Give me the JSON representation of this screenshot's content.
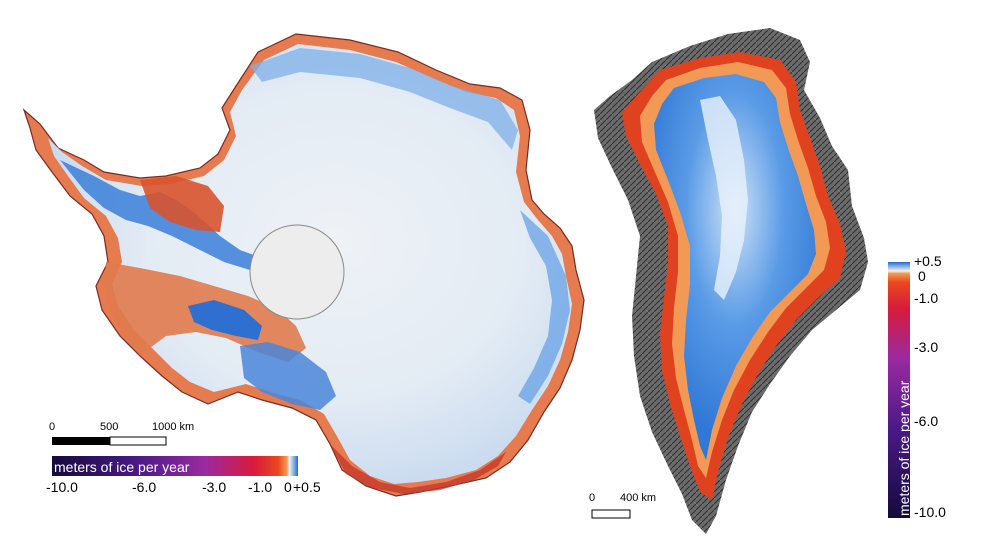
{
  "antarctica": {
    "scale_bar": {
      "ticks": [
        "0",
        "500",
        "1000 km"
      ]
    },
    "legend": {
      "title": "meters of ice per year",
      "ticks": [
        "-10.0",
        "-6.0",
        "-3.0",
        "-1.0",
        "0",
        "+0.5"
      ]
    }
  },
  "greenland": {
    "scale_bar": {
      "ticks": [
        "0",
        "400 km"
      ]
    },
    "legend": {
      "title": "meters of ice per year",
      "ticks": [
        "+0.5",
        "0",
        "-1.0",
        "-3.0",
        "-6.0",
        "-10.0"
      ]
    }
  },
  "colors": {
    "thickening": "#2f78d6",
    "stable": "#eef3f8",
    "mild_loss": "#e0623a",
    "strong_loss": "#c7132f",
    "extreme_loss": "#2a0a55",
    "rock_shading": "#5a5a5a"
  }
}
